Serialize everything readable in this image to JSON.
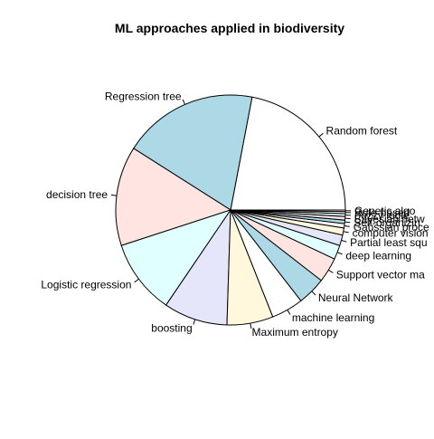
{
  "chart_data": {
    "type": "pie",
    "title": "ML approaches applied in biodiversity",
    "direction": "counterclockwise",
    "start": "right (3 o'clock)",
    "slices": [
      {
        "label": "Random forest",
        "value": 22.0,
        "color": "#ffffff"
      },
      {
        "label": "Regression tree",
        "value": 19.0,
        "color": "#add8e6"
      },
      {
        "label": "decision tree",
        "value": 14.0,
        "color": "#ffe4e1"
      },
      {
        "label": "Logistic regression",
        "value": 10.5,
        "color": "#e0ffff"
      },
      {
        "label": "boosting",
        "value": 9.0,
        "color": "#e6e6fa"
      },
      {
        "label": "Maximum entropy",
        "value": 6.5,
        "color": "#fff8dc"
      },
      {
        "label": "machine learning",
        "value": 4.5,
        "color": "#ffffff"
      },
      {
        "label": "Neural Network",
        "value": 4.0,
        "color": "#add8e6"
      },
      {
        "label": "Support vector ma",
        "value": 3.5,
        "color": "#ffe4e1"
      },
      {
        "label": "deep learning",
        "value": 2.0,
        "color": "#e0ffff"
      },
      {
        "label": "Partial least squ",
        "value": 1.5,
        "color": "#e6e6fa"
      },
      {
        "label": "computer vision",
        "value": 1.0,
        "color": "#fff8dc"
      },
      {
        "label": "Gaussian proce",
        "value": 0.6,
        "color": "#ffffff"
      },
      {
        "label": "Self-organizin",
        "value": 0.5,
        "color": "#add8e6"
      },
      {
        "label": "Bayesian netw",
        "value": 0.5,
        "color": "#ffe4e1"
      },
      {
        "label": "Fuzzy logic",
        "value": 0.4,
        "color": "#e0ffff"
      },
      {
        "label": "Rule-based",
        "value": 0.3,
        "color": "#e6e6fa"
      },
      {
        "label": "Genetic algo",
        "value": 0.2,
        "color": "#fff8dc"
      }
    ]
  }
}
